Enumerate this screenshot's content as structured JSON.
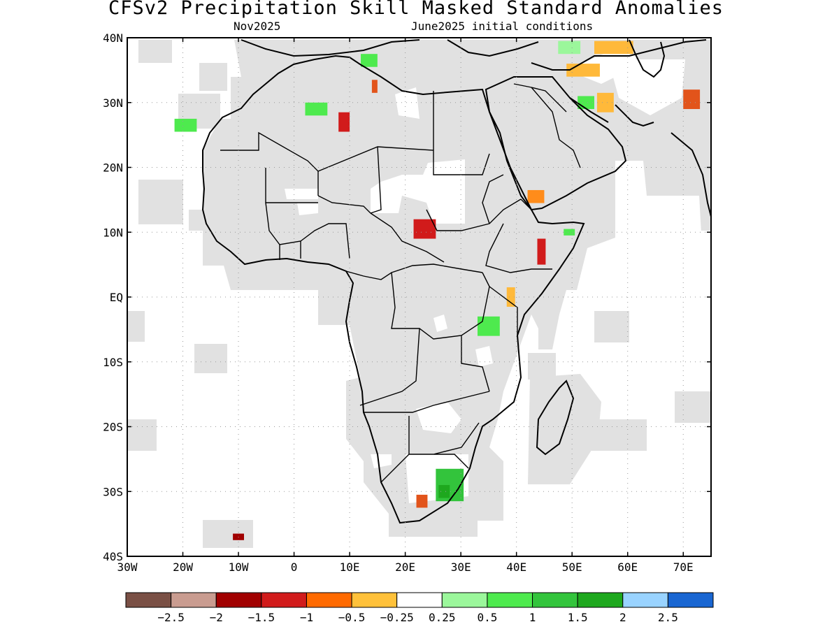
{
  "title": "CFSv2 Precipitation Skill Masked Standard Anomalies",
  "subtitle_left": "Nov2025",
  "subtitle_right": "June2025 initial conditions",
  "map": {
    "lon_range": [
      -30,
      75
    ],
    "lat_range": [
      -40,
      40
    ],
    "lon_ticks": [
      {
        "lon": -30,
        "label": "30W"
      },
      {
        "lon": -20,
        "label": "20W"
      },
      {
        "lon": -10,
        "label": "10W"
      },
      {
        "lon": 0,
        "label": "0"
      },
      {
        "lon": 10,
        "label": "10E"
      },
      {
        "lon": 20,
        "label": "20E"
      },
      {
        "lon": 30,
        "label": "30E"
      },
      {
        "lon": 40,
        "label": "40E"
      },
      {
        "lon": 50,
        "label": "50E"
      },
      {
        "lon": 60,
        "label": "60E"
      },
      {
        "lon": 70,
        "label": "70E"
      }
    ],
    "lat_ticks": [
      {
        "lat": 40,
        "label": "40N"
      },
      {
        "lat": 30,
        "label": "30N"
      },
      {
        "lat": 20,
        "label": "20N"
      },
      {
        "lat": 10,
        "label": "10N"
      },
      {
        "lat": 0,
        "label": "EQ"
      },
      {
        "lat": -10,
        "label": "10S"
      },
      {
        "lat": -20,
        "label": "20S"
      },
      {
        "lat": -30,
        "label": "30S"
      },
      {
        "lat": -40,
        "label": "40S"
      }
    ],
    "skill_mask_color": "#e1e1e1",
    "anomaly_patches": [
      {
        "lon": 23.5,
        "lat": 10.5,
        "w": 4,
        "h": 3,
        "color": "#d11b1b"
      },
      {
        "lon": 44.5,
        "lat": 7,
        "w": 1.5,
        "h": 4,
        "color": "#d11b1b"
      },
      {
        "lon": 9,
        "lat": 27,
        "w": 2,
        "h": 3,
        "color": "#d11b1b"
      },
      {
        "lon": 14.5,
        "lat": 32.5,
        "w": 1,
        "h": 2,
        "color": "#e2541b"
      },
      {
        "lon": -10,
        "lat": -37,
        "w": 2,
        "h": 1,
        "color": "#a10000"
      },
      {
        "lon": 23,
        "lat": -31.5,
        "w": 2,
        "h": 2,
        "color": "#e2541b"
      },
      {
        "lon": 71.5,
        "lat": 30.5,
        "w": 3,
        "h": 3,
        "color": "#e2541b"
      },
      {
        "lon": 43.5,
        "lat": 15.5,
        "w": 3,
        "h": 2,
        "color": "#ff8c1a"
      },
      {
        "lon": 52,
        "lat": 35,
        "w": 6,
        "h": 2,
        "color": "#ffb93a"
      },
      {
        "lon": 57.5,
        "lat": 38.5,
        "w": 7,
        "h": 2,
        "color": "#ffb93a"
      },
      {
        "lon": 56,
        "lat": 30,
        "w": 3,
        "h": 3,
        "color": "#ffb93a"
      },
      {
        "lon": 39,
        "lat": 0,
        "w": 1.5,
        "h": 3,
        "color": "#ffb93a"
      },
      {
        "lon": 28,
        "lat": -29,
        "w": 5,
        "h": 5,
        "color": "#33c43c"
      },
      {
        "lon": 27,
        "lat": -30,
        "w": 2,
        "h": 2,
        "color": "#1ea81e"
      },
      {
        "lon": 35,
        "lat": -4.5,
        "w": 4,
        "h": 3,
        "color": "#4eea4e"
      },
      {
        "lon": 4,
        "lat": 29,
        "w": 4,
        "h": 2,
        "color": "#4eea4e"
      },
      {
        "lon": -19.5,
        "lat": 26.5,
        "w": 4,
        "h": 2,
        "color": "#4eea4e"
      },
      {
        "lon": 13.5,
        "lat": 36.5,
        "w": 3,
        "h": 2,
        "color": "#4eea4e"
      },
      {
        "lon": 52.5,
        "lat": 30,
        "w": 3,
        "h": 2,
        "color": "#4eea4e"
      },
      {
        "lon": 49.5,
        "lat": 38.5,
        "w": 4,
        "h": 2,
        "color": "#9bf79b"
      },
      {
        "lon": 49.5,
        "lat": 10,
        "w": 2,
        "h": 1,
        "color": "#4eea4e"
      }
    ]
  },
  "colorbar": {
    "colors": [
      "#7a5045",
      "#c99c90",
      "#a10000",
      "#d11b1b",
      "#ff6a00",
      "#ffc13a",
      "#ffffff",
      "#9bf79b",
      "#4eea4e",
      "#33c43c",
      "#1ea81e",
      "#99d3ff",
      "#1966d2"
    ],
    "labels": [
      "−2.5",
      "−2",
      "−1.5",
      "−1",
      "−0.5",
      "−0.25",
      "0.25",
      "0.5",
      "1",
      "1.5",
      "2",
      "2.5"
    ]
  }
}
